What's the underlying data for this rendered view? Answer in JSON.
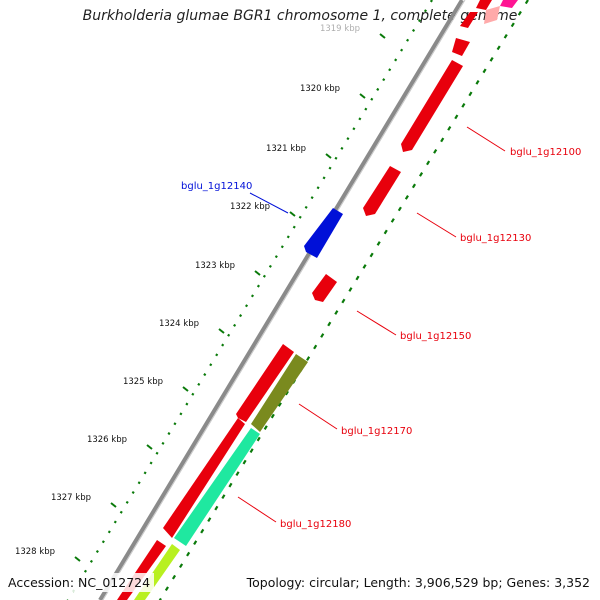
{
  "title": "Burkholderia glumae BGR1 chromosome 1, complete genome",
  "footer": {
    "accession": "Accession: NC_012724",
    "summary": "Topology: circular; Length: 3,906,529 bp; Genes: 3,352"
  },
  "ruler": {
    "unit": "kbp",
    "ticks": [
      {
        "label": "1319 kbp",
        "faded": true
      },
      {
        "label": "1320 kbp"
      },
      {
        "label": "1321 kbp"
      },
      {
        "label": "1322 kbp"
      },
      {
        "label": "1323 kbp"
      },
      {
        "label": "1324 kbp"
      },
      {
        "label": "1325 kbp"
      },
      {
        "label": "1326 kbp"
      },
      {
        "label": "1327 kbp"
      },
      {
        "label": "1328 kbp"
      }
    ]
  },
  "genes": [
    {
      "name": "bglu_1g12100",
      "strand": "reverse",
      "color": "#e8000c"
    },
    {
      "name": "bglu_1g12130",
      "strand": "reverse",
      "color": "#e8000c"
    },
    {
      "name": "bglu_1g12140",
      "strand": "forward",
      "color": "#0010d8"
    },
    {
      "name": "bglu_1g12150",
      "strand": "reverse",
      "color": "#e8000c"
    },
    {
      "name": "bglu_1g12170",
      "strand": "reverse",
      "color": "#e8000c"
    },
    {
      "name": "bglu_1g12180",
      "strand": "reverse",
      "color": "#e8000c"
    }
  ],
  "feature_colors": {
    "cds": "#e8000c",
    "forward_cds": "#0010d8",
    "olive_track": "#7a8a1e",
    "aqua_track": "#1fe8a0",
    "lime_track": "#b8f020",
    "magenta_track": "#ff1493",
    "gc_skew_dots": "#0a7a0a",
    "backbone": "#8a8a8a"
  }
}
